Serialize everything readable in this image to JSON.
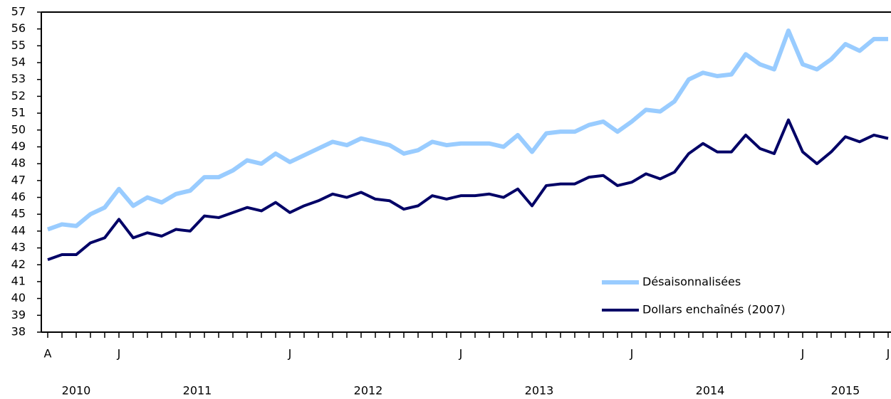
{
  "chart_data": {
    "type": "line",
    "categories": [
      "A",
      null,
      null,
      null,
      null,
      "J",
      null,
      null,
      null,
      null,
      null,
      null,
      null,
      null,
      null,
      null,
      null,
      "J",
      null,
      null,
      null,
      null,
      null,
      null,
      null,
      null,
      null,
      null,
      null,
      "J",
      null,
      null,
      null,
      null,
      null,
      null,
      null,
      null,
      null,
      null,
      null,
      "J",
      null,
      null,
      null,
      null,
      null,
      null,
      null,
      null,
      null,
      null,
      null,
      "J",
      null,
      null,
      null,
      null,
      null,
      "J"
    ],
    "year_labels": [
      "2010",
      "2011",
      "2012",
      "2013",
      "2014",
      "2015"
    ],
    "series": [
      {
        "name": "Désaisonnalisées",
        "color": "#99ccff",
        "values": [
          44.1,
          44.4,
          44.3,
          45.0,
          45.4,
          46.5,
          45.5,
          46.0,
          45.7,
          46.2,
          46.4,
          47.2,
          47.2,
          47.6,
          48.2,
          48.0,
          48.6,
          48.1,
          48.5,
          48.9,
          49.3,
          49.1,
          49.5,
          49.3,
          49.1,
          48.6,
          48.8,
          49.3,
          49.1,
          49.2,
          49.2,
          49.2,
          49.0,
          49.7,
          48.7,
          49.8,
          49.9,
          49.9,
          50.3,
          50.5,
          49.9,
          50.5,
          51.2,
          51.1,
          51.7,
          53.0,
          53.4,
          53.2,
          53.3,
          54.5,
          53.9,
          53.6,
          55.9,
          53.9,
          53.6,
          54.2,
          55.1,
          54.7,
          55.4,
          55.4
        ]
      },
      {
        "name": "Dollars enchaînés (2007)",
        "color": "#000066",
        "values": [
          42.3,
          42.6,
          42.6,
          43.3,
          43.6,
          44.7,
          43.6,
          43.9,
          43.7,
          44.1,
          44.0,
          44.9,
          44.8,
          45.1,
          45.4,
          45.2,
          45.7,
          45.1,
          45.5,
          45.8,
          46.2,
          46.0,
          46.3,
          45.9,
          45.8,
          45.3,
          45.5,
          46.1,
          45.9,
          46.1,
          46.1,
          46.2,
          46.0,
          46.5,
          45.5,
          46.7,
          46.8,
          46.8,
          47.2,
          47.3,
          46.7,
          46.9,
          47.4,
          47.1,
          47.5,
          48.6,
          49.2,
          48.7,
          48.7,
          49.7,
          48.9,
          48.6,
          50.6,
          48.7,
          48.0,
          48.7,
          49.6,
          49.3,
          49.7,
          49.5
        ]
      }
    ],
    "ylim": [
      38,
      57
    ],
    "yticks": [
      38,
      39,
      40,
      41,
      42,
      43,
      44,
      45,
      46,
      47,
      48,
      49,
      50,
      51,
      52,
      53,
      54,
      55,
      56,
      57
    ],
    "grid": false,
    "legend": "lower-right"
  }
}
